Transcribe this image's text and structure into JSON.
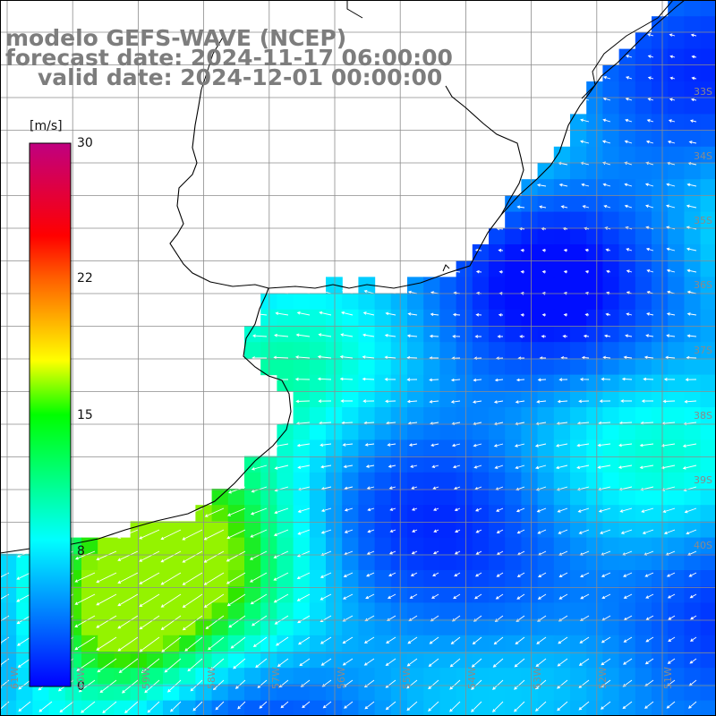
{
  "title": {
    "line1": "modelo GEFS-WAVE (NCEP)",
    "line2": "forecast date: 2024-11-17 06:00:00",
    "line3": "valid date: 2024-12-01 00:00:00"
  },
  "colorbar": {
    "unit": "[m/s]",
    "min": 0,
    "max": 30,
    "ticks": [
      "30",
      "22",
      "15",
      "8",
      "0"
    ],
    "tick_values": [
      30,
      22,
      15,
      8,
      0
    ]
  },
  "grid": {
    "lat_labels": [
      "33S",
      "34S",
      "35S",
      "36S",
      "37S",
      "38S",
      "39S",
      "40S"
    ],
    "lon_labels": [
      "61W",
      "60W",
      "59W",
      "58W",
      "57W",
      "56W",
      "55W",
      "54W",
      "53W",
      "52W",
      "51W"
    ]
  },
  "colors": {
    "land": "#ffffff",
    "coast": "#000000",
    "grid": "#8c8c8c",
    "arrow": "#ffffff",
    "title": "#7d7d7d"
  }
}
